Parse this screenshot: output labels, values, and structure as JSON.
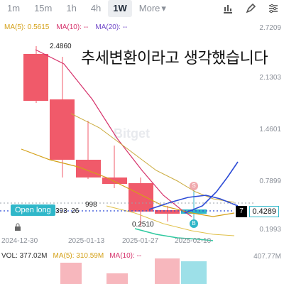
{
  "timeframes": [
    "1m",
    "15m",
    "1h",
    "4h",
    "1W"
  ],
  "active_timeframe": "1W",
  "more_label": "More",
  "ma": {
    "ma5": "MA(5): 0.5615",
    "ma10": "MA(10): --",
    "ma20": "MA(20): --"
  },
  "yaxis": [
    "2.7209",
    "2.1303",
    "1.4601",
    "0.7899",
    "0.1993"
  ],
  "xaxis": [
    "2024-12-30",
    "2025-01-13",
    "2025-01-27",
    "2025-02-10"
  ],
  "high_label": "2.4860",
  "low_label": "0.2510",
  "overlay_text": "추세변환이라고 생각했습니다",
  "open_long": {
    "label": "Open long",
    "qty": "393",
    "extra": "26",
    "price": "998"
  },
  "current_price": "0.4289",
  "black_badge": "7",
  "marks": {
    "s": "S",
    "b": "B"
  },
  "watermark": "Bitget",
  "volume": {
    "vol": "VOL: 377.02M",
    "ma5": "MA(5): 310.59M",
    "ma10": "MA(10): --",
    "max": "407.77M"
  },
  "colors": {
    "up": "#2fb7c9",
    "down": "#f05a6a",
    "ma5": "#d4a017",
    "ma10": "#d6336c",
    "ma20": "#7048c8"
  }
}
